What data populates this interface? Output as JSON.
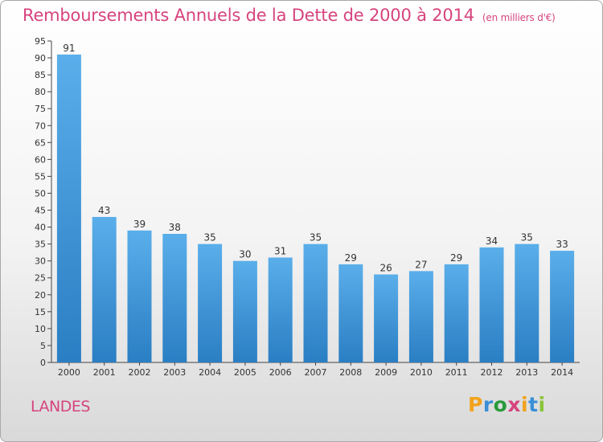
{
  "header": {
    "title": "Remboursements Annuels de la Dette de 2000 à 2014",
    "unit": "(en milliers d'€)"
  },
  "location": "LANDES",
  "brand": {
    "name": "Proxiti",
    "letters": [
      {
        "ch": "P",
        "color": "#f2a21b"
      },
      {
        "ch": "r",
        "color": "#3a8fd6"
      },
      {
        "ch": "o",
        "color": "#2a9a3a"
      },
      {
        "ch": "x",
        "color": "#d6447e"
      },
      {
        "ch": "i",
        "color": "#f2a21b"
      },
      {
        "ch": "t",
        "color": "#3a8fd6"
      },
      {
        "ch": "i",
        "color": "#8ac43a"
      }
    ]
  },
  "chart_data": {
    "type": "bar",
    "title": "Remboursements Annuels de la Dette de 2000 à 2014",
    "categories": [
      "2000",
      "2001",
      "2002",
      "2003",
      "2004",
      "2005",
      "2006",
      "2007",
      "2008",
      "2009",
      "2010",
      "2011",
      "2012",
      "2013",
      "2014"
    ],
    "values": [
      91,
      43,
      39,
      38,
      35,
      30,
      31,
      35,
      29,
      26,
      27,
      29,
      34,
      35,
      33
    ],
    "ylim": [
      0,
      95
    ],
    "yticks": [
      0,
      5,
      10,
      15,
      20,
      25,
      30,
      35,
      40,
      45,
      50,
      55,
      60,
      65,
      70,
      75,
      80,
      85,
      90,
      95
    ],
    "grid": false,
    "bar_color_top": "#5aaeea",
    "bar_color_bottom": "#2a7ec3"
  }
}
